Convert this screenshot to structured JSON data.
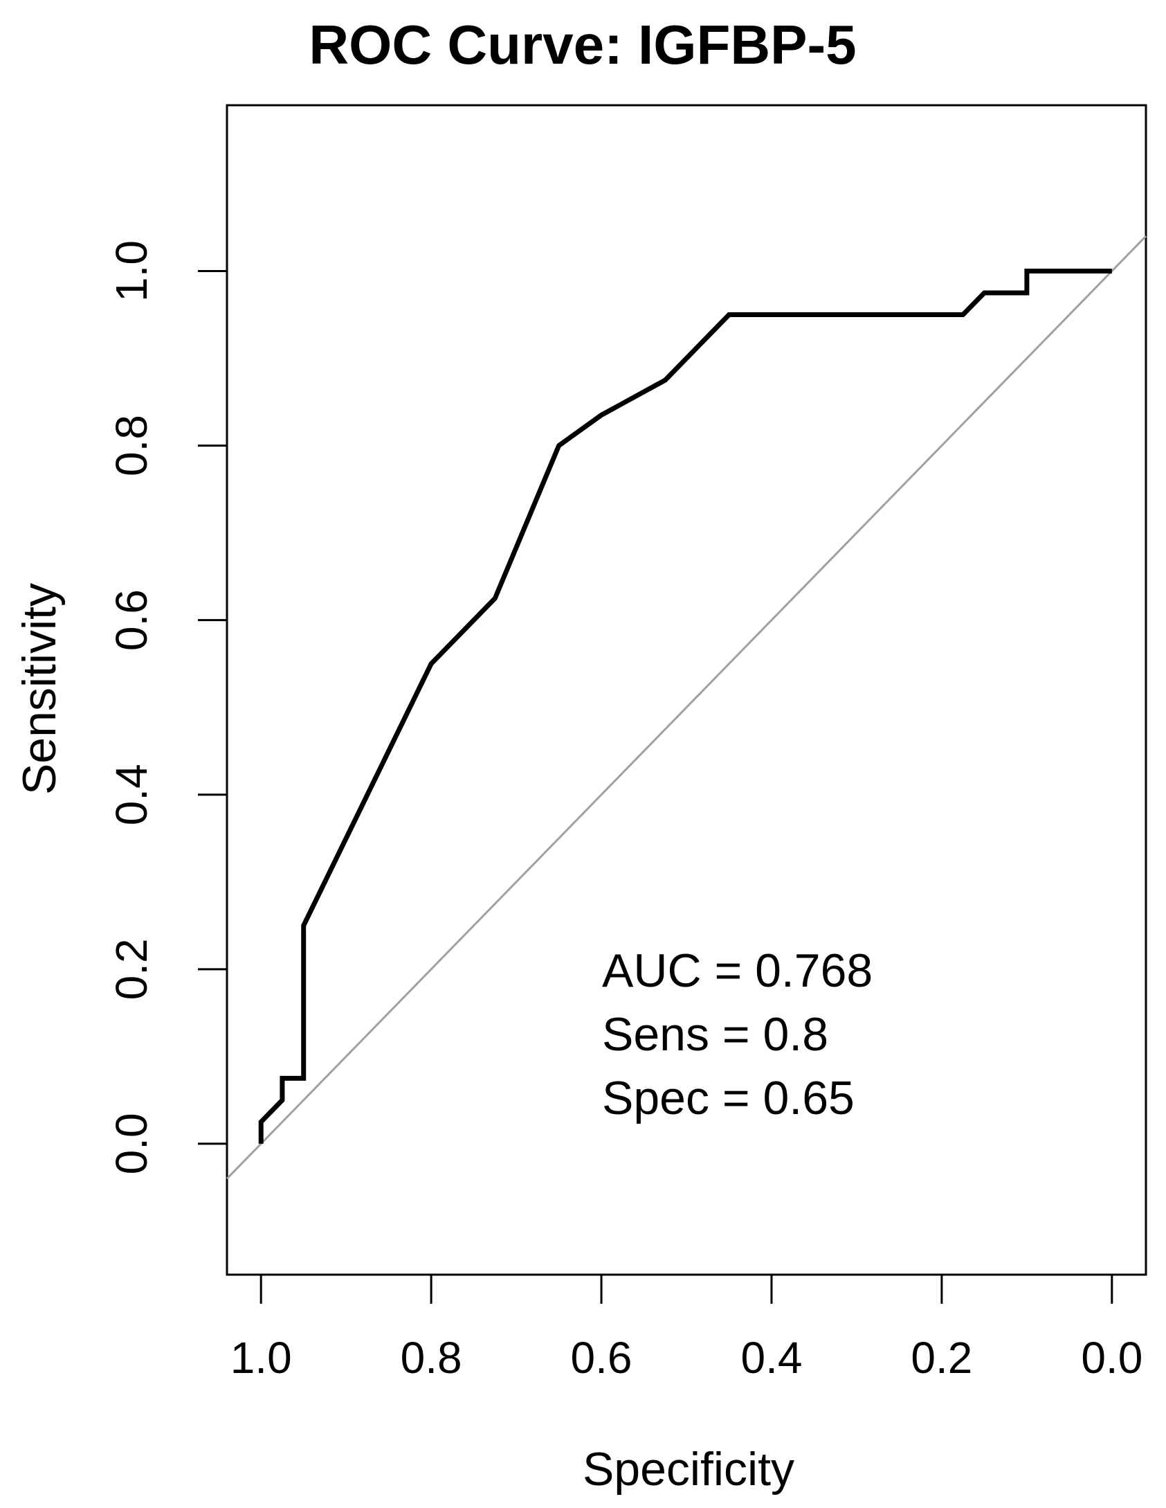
{
  "chart_data": {
    "type": "line",
    "title": "ROC Curve: IGFBP-5",
    "xlabel": "Specificity",
    "ylabel": "Sensitivity",
    "xlim": [
      1.04,
      -0.04
    ],
    "ylim": [
      -0.15,
      1.19
    ],
    "x_reversed": true,
    "x_ticks": [
      1.0,
      0.8,
      0.6,
      0.4,
      0.2,
      0.0
    ],
    "x_tick_labels": [
      "1.0",
      "0.8",
      "0.6",
      "0.4",
      "0.2",
      "0.0"
    ],
    "y_ticks": [
      0.0,
      0.2,
      0.4,
      0.6,
      0.8,
      1.0
    ],
    "y_tick_labels": [
      "0.0",
      "0.2",
      "0.4",
      "0.6",
      "0.8",
      "1.0"
    ],
    "grid": false,
    "series": [
      {
        "color": "#000000",
        "specificity": [
          1.0,
          1.0,
          0.975,
          0.975,
          0.95,
          0.95,
          0.8,
          0.725,
          0.65,
          0.6,
          0.525,
          0.45,
          0.175,
          0.15,
          0.1,
          0.1,
          0.0
        ],
        "sensitivity": [
          0.0,
          0.025,
          0.05,
          0.075,
          0.075,
          0.25,
          0.55,
          0.625,
          0.8,
          0.835,
          0.875,
          0.95,
          0.95,
          0.975,
          0.975,
          1.0,
          1.0
        ]
      }
    ],
    "reference_line": {
      "color": "#a0a0a0",
      "from": [
        1.04,
        -0.04
      ],
      "to": [
        -0.04,
        1.04
      ]
    },
    "annotations": [
      "AUC = 0.768",
      "Sens = 0.8",
      "Spec = 0.65"
    ]
  }
}
